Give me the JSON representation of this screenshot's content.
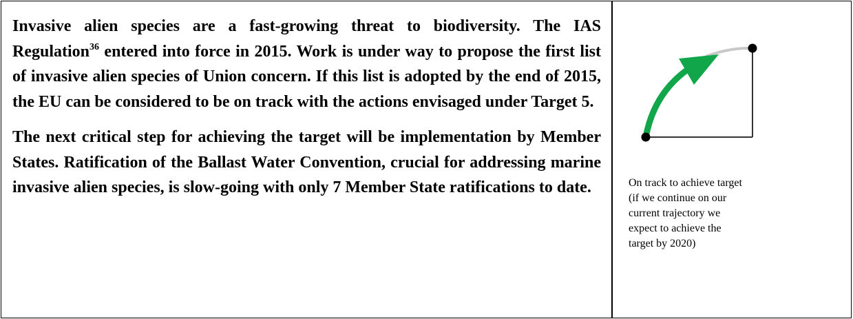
{
  "left": {
    "paragraphs": [
      {
        "before": "Invasive alien species are a fast-growing threat to biodiversity. The IAS Regulation",
        "sup": "36",
        "after": " entered into force in 2015. Work is under way to propose the first list of invasive alien species of Union concern. If this list is adopted by the end of 2015, the EU can be considered to be on track with the actions envisaged under Target 5."
      },
      {
        "text": "The next critical step for achieving the target will be implementation by Member States. Ratification of the Ballast Water Convention, crucial for addressing marine invasive alien species, is slow-going with only 7 Member State ratifications to date."
      }
    ]
  },
  "right": {
    "caption": [
      "On track to achieve target",
      "(if we continue on our",
      "current trajectory we",
      "expect to achieve the",
      "target by 2020)"
    ]
  }
}
